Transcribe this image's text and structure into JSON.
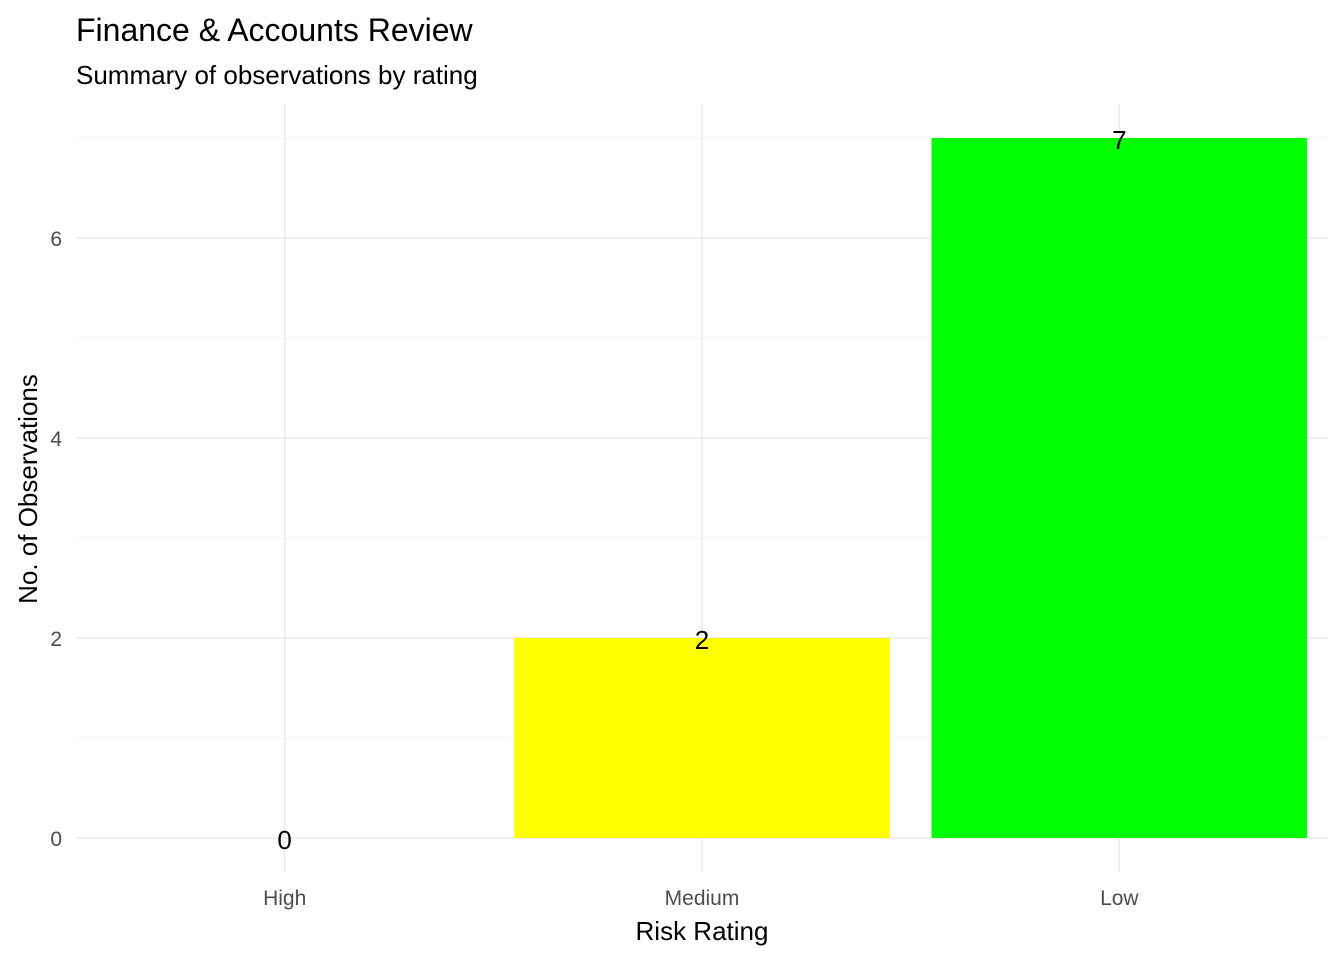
{
  "chart_data": {
    "type": "bar",
    "title": "Finance & Accounts Review",
    "subtitle": "Summary of observations by rating",
    "xlabel": "Risk Rating",
    "ylabel": "No. of Observations",
    "categories": [
      "High",
      "Medium",
      "Low"
    ],
    "values": [
      0,
      2,
      7
    ],
    "data_labels": [
      "0",
      "2",
      "7"
    ],
    "colors": [
      "#FF0000",
      "#FFFF00",
      "#00FF00"
    ],
    "ylim": [
      0,
      7
    ],
    "y_ticks": [
      0,
      2,
      4,
      6
    ],
    "y_tick_labels": [
      "0",
      "2",
      "4",
      "6"
    ],
    "grid": true,
    "legend": "none"
  }
}
